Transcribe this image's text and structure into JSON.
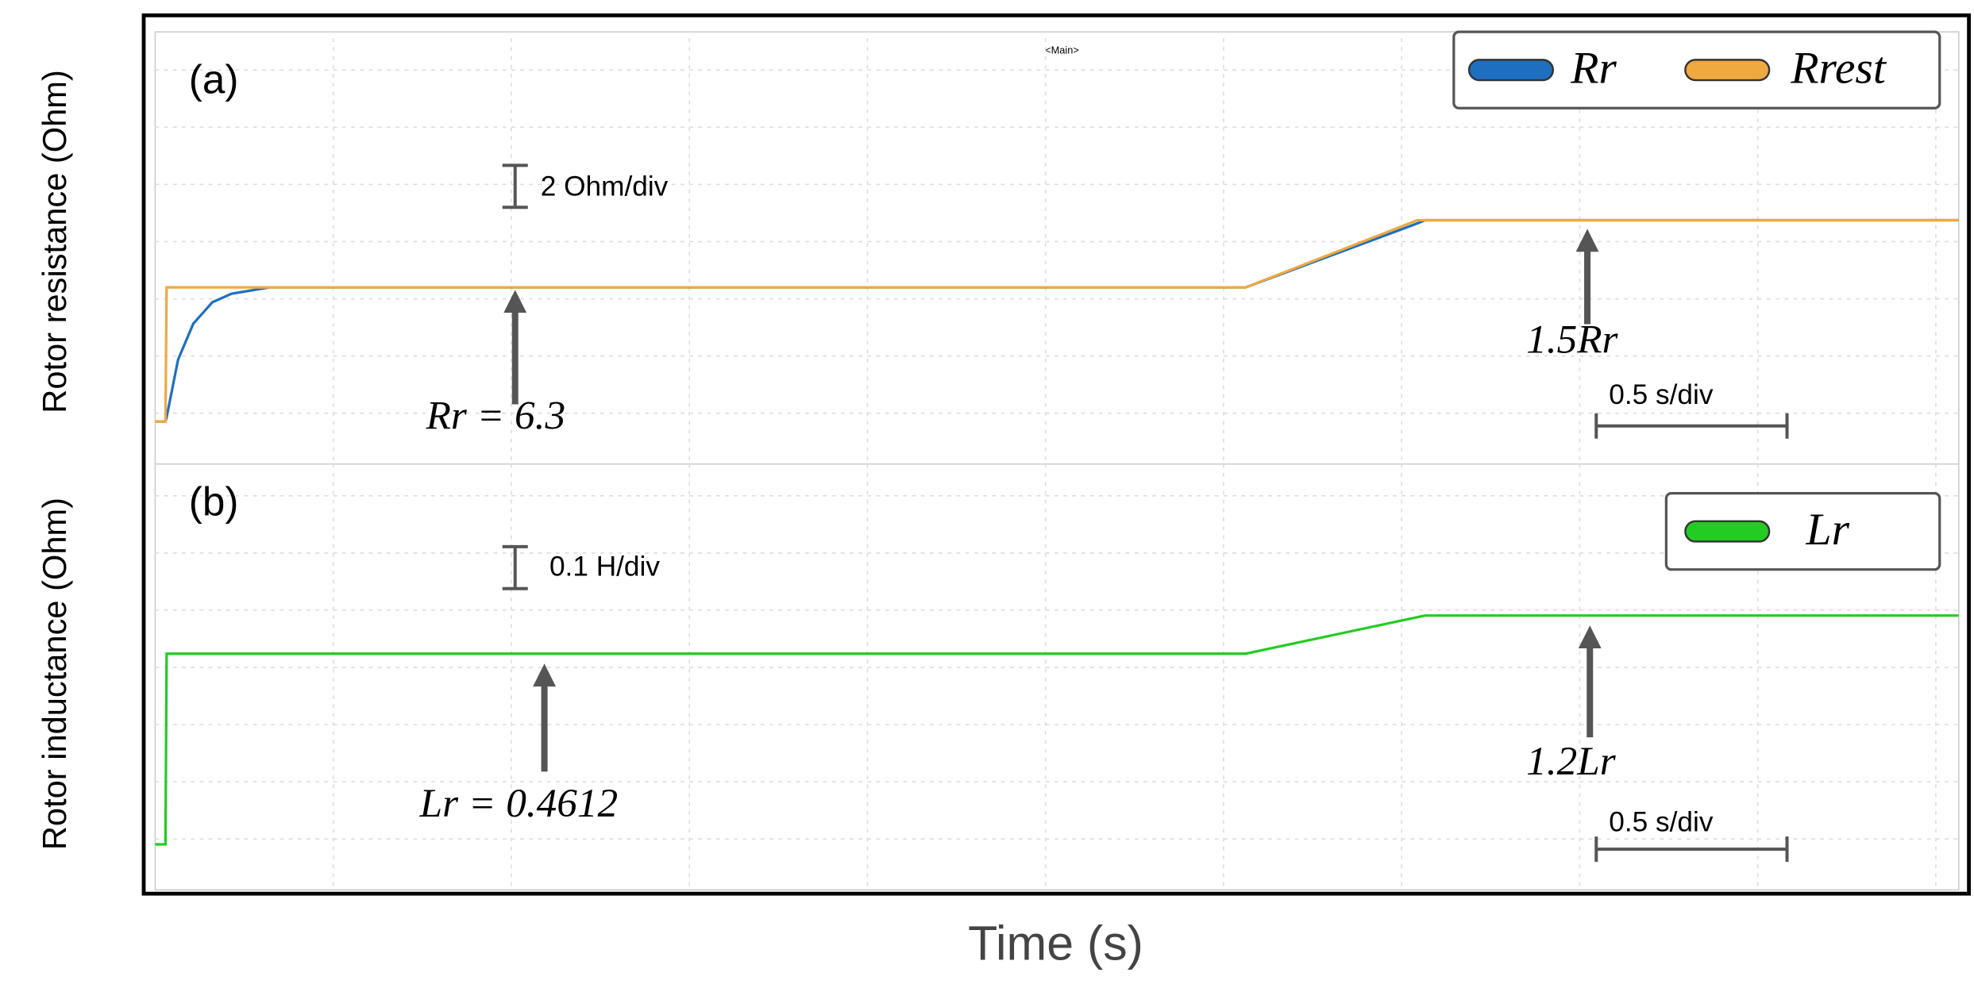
{
  "title": "<Main>",
  "xlabel": "Time (s)",
  "chart_data": [
    {
      "type": "line",
      "panel_label": "(a)",
      "ylabel": "Rotor resistance (Ohm)",
      "x": [
        0,
        0.027,
        0.03,
        0.06,
        0.1,
        0.15,
        0.2,
        0.3,
        2.86,
        3.31,
        3.33,
        4.73
      ],
      "series": [
        {
          "name": "Rr",
          "color": "#1f6fc0",
          "values": [
            0,
            0,
            0.2,
            2.9,
            4.6,
            5.6,
            6.0,
            6.3,
            6.3,
            9.3,
            9.45,
            9.45
          ]
        },
        {
          "name": "Rrest",
          "color": "#f0a840",
          "values": [
            0,
            0,
            6.3,
            6.3,
            6.3,
            6.3,
            6.3,
            6.3,
            6.3,
            9.45,
            9.45,
            9.45
          ]
        }
      ],
      "xlim": [
        0,
        4.73
      ],
      "ylim": [
        -2,
        18
      ],
      "grid": true,
      "scale_labels": [
        "2 Ohm/div",
        "0.5 s/div"
      ],
      "annotations": [
        "Rr = 6.3",
        "1.5Rr"
      ]
    },
    {
      "type": "line",
      "panel_label": "(b)",
      "ylabel": "Rotor inductance (Ohm)",
      "x": [
        0,
        0.027,
        0.03,
        2.86,
        3.33,
        4.73
      ],
      "series": [
        {
          "name": "Lr",
          "color": "#22cc22",
          "values": [
            0,
            0,
            0.4612,
            0.4612,
            0.5534,
            0.5534
          ]
        }
      ],
      "xlim": [
        0,
        4.73
      ],
      "ylim": [
        -0.11,
        0.92
      ],
      "grid": true,
      "scale_labels": [
        "0.1 H/div",
        "0.5 s/div"
      ],
      "annotations": [
        "Lr = 0.4612",
        "1.2Lr"
      ]
    }
  ]
}
